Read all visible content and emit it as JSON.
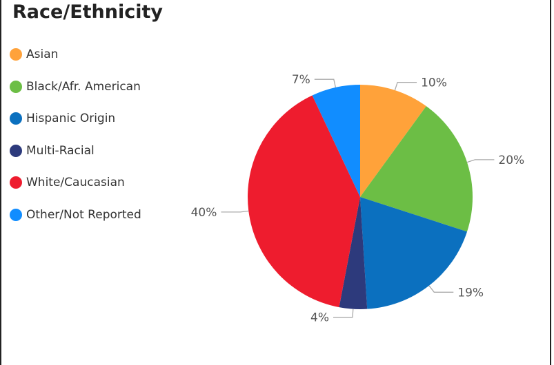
{
  "chart_data": {
    "type": "pie",
    "title": "Race/Ethnicity",
    "legend_position": "left",
    "start_angle_deg": 0,
    "direction": "clockwise",
    "slices": [
      {
        "name": "Asian",
        "value": 10,
        "label": "10%",
        "color": "#FFA23A"
      },
      {
        "name": "Black/Afr. American",
        "value": 20,
        "label": "20%",
        "color": "#6CBE45"
      },
      {
        "name": "Hispanic Origin",
        "value": 19,
        "label": "19%",
        "color": "#0B70BF"
      },
      {
        "name": "Multi-Racial",
        "value": 4,
        "label": "4%",
        "color": "#2D3A7C"
      },
      {
        "name": "White/Caucasian",
        "value": 40,
        "label": "40%",
        "color": "#EE1C2E"
      },
      {
        "name": "Other/Not Reported",
        "value": 7,
        "label": "7%",
        "color": "#118DFF"
      }
    ]
  }
}
